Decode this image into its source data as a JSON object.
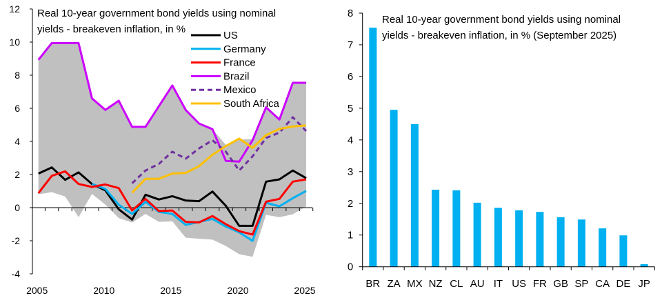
{
  "chart_data": [
    {
      "type": "line",
      "title_lines": [
        "Real 10-year government bond yields using nominal",
        "yields - breakeven inflation, in %"
      ],
      "xlabel": "",
      "ylabel": "",
      "xlim": [
        2005,
        2025
      ],
      "ylim": [
        -4,
        12
      ],
      "yticks": [
        -4,
        -2,
        0,
        2,
        4,
        6,
        8,
        10,
        12
      ],
      "xticks": [
        2005,
        2010,
        2015,
        2020,
        2025
      ],
      "legend_position": "top-right",
      "x": [
        2005,
        2006,
        2007,
        2008,
        2009,
        2010,
        2011,
        2012,
        2013,
        2014,
        2015,
        2016,
        2017,
        2018,
        2019,
        2020,
        2021,
        2022,
        2023,
        2024,
        2025
      ],
      "band": {
        "name": "range",
        "color": "#c0c0c0",
        "upper": [
          8.93,
          9.94,
          9.94,
          9.94,
          6.6,
          5.9,
          6.46,
          4.88,
          4.88,
          6.13,
          7.38,
          5.9,
          5.08,
          4.74,
          3.79,
          4.11,
          4.14,
          6.06,
          5.32,
          7.54,
          7.54
        ],
        "lower": [
          0.8,
          0.94,
          0.67,
          -0.58,
          0.83,
          0.18,
          -0.63,
          -0.9,
          -0.38,
          -0.86,
          -0.83,
          -1.81,
          -1.88,
          -1.93,
          -2.32,
          -2.81,
          -2.97,
          -0.44,
          -0.58,
          -0.4,
          0.07
        ]
      },
      "series": [
        {
          "name": "US",
          "color": "#000000",
          "dash": false,
          "values": [
            2.06,
            2.43,
            1.68,
            2.13,
            1.43,
            1.04,
            -0.1,
            -0.72,
            0.78,
            0.49,
            0.69,
            0.43,
            0.39,
            0.97,
            0.11,
            -1.1,
            -1.1,
            1.57,
            1.71,
            2.24,
            1.78
          ]
        },
        {
          "name": "Germany",
          "color": "#00b0f0",
          "dash": false,
          "values": [
            null,
            null,
            null,
            null,
            1.43,
            1.13,
            0.18,
            -0.38,
            0.35,
            -0.26,
            -0.38,
            -1.04,
            -0.86,
            -0.68,
            -1.14,
            -1.49,
            -2.01,
            0.29,
            0.08,
            0.57,
            1.01
          ]
        },
        {
          "name": "France",
          "color": "#ff0000",
          "dash": false,
          "values": [
            0.88,
            1.92,
            2.19,
            1.43,
            1.25,
            1.4,
            1.18,
            -0.17,
            0.53,
            -0.21,
            -0.17,
            -0.86,
            -0.89,
            -0.51,
            -1.0,
            -1.42,
            -1.63,
            0.36,
            0.53,
            1.57,
            1.71
          ]
        },
        {
          "name": "Brazil",
          "color": "#cc00ff",
          "dash": false,
          "values": [
            8.93,
            9.94,
            9.94,
            9.94,
            6.6,
            5.9,
            6.46,
            4.88,
            4.88,
            6.13,
            7.38,
            5.9,
            5.08,
            4.74,
            2.82,
            2.78,
            4.07,
            6.06,
            5.32,
            7.54,
            7.54
          ]
        },
        {
          "name": "Mexico",
          "color": "#7030a0",
          "dash": true,
          "values": [
            null,
            null,
            null,
            null,
            null,
            null,
            null,
            1.47,
            2.24,
            2.64,
            3.38,
            2.96,
            3.58,
            4.07,
            3.38,
            2.24,
            3.1,
            4.21,
            4.53,
            5.46,
            4.63
          ]
        },
        {
          "name": "South Africa",
          "color": "#ffc000",
          "dash": false,
          "values": [
            null,
            null,
            null,
            null,
            null,
            null,
            null,
            0.9,
            1.74,
            1.74,
            2.06,
            2.1,
            2.51,
            3.19,
            3.72,
            4.17,
            3.61,
            4.38,
            4.76,
            4.9,
            4.97
          ]
        }
      ]
    },
    {
      "type": "bar",
      "title_lines": [
        "Real 10-year government bond yields using nominal",
        "yields - breakeven inflation, in % (September 2025)"
      ],
      "xlabel": "",
      "ylabel": "",
      "ylim": [
        0,
        8
      ],
      "yticks": [
        0,
        1,
        2,
        3,
        4,
        5,
        6,
        7,
        8
      ],
      "color": "#00b0f0",
      "categories": [
        "BR",
        "ZA",
        "MX",
        "NZ",
        "CL",
        "AU",
        "IT",
        "US",
        "FR",
        "GB",
        "SP",
        "CA",
        "DE",
        "JP"
      ],
      "values": [
        7.54,
        4.95,
        4.5,
        2.43,
        2.41,
        2.02,
        1.86,
        1.78,
        1.73,
        1.56,
        1.49,
        1.21,
        0.99,
        0.08
      ]
    }
  ]
}
